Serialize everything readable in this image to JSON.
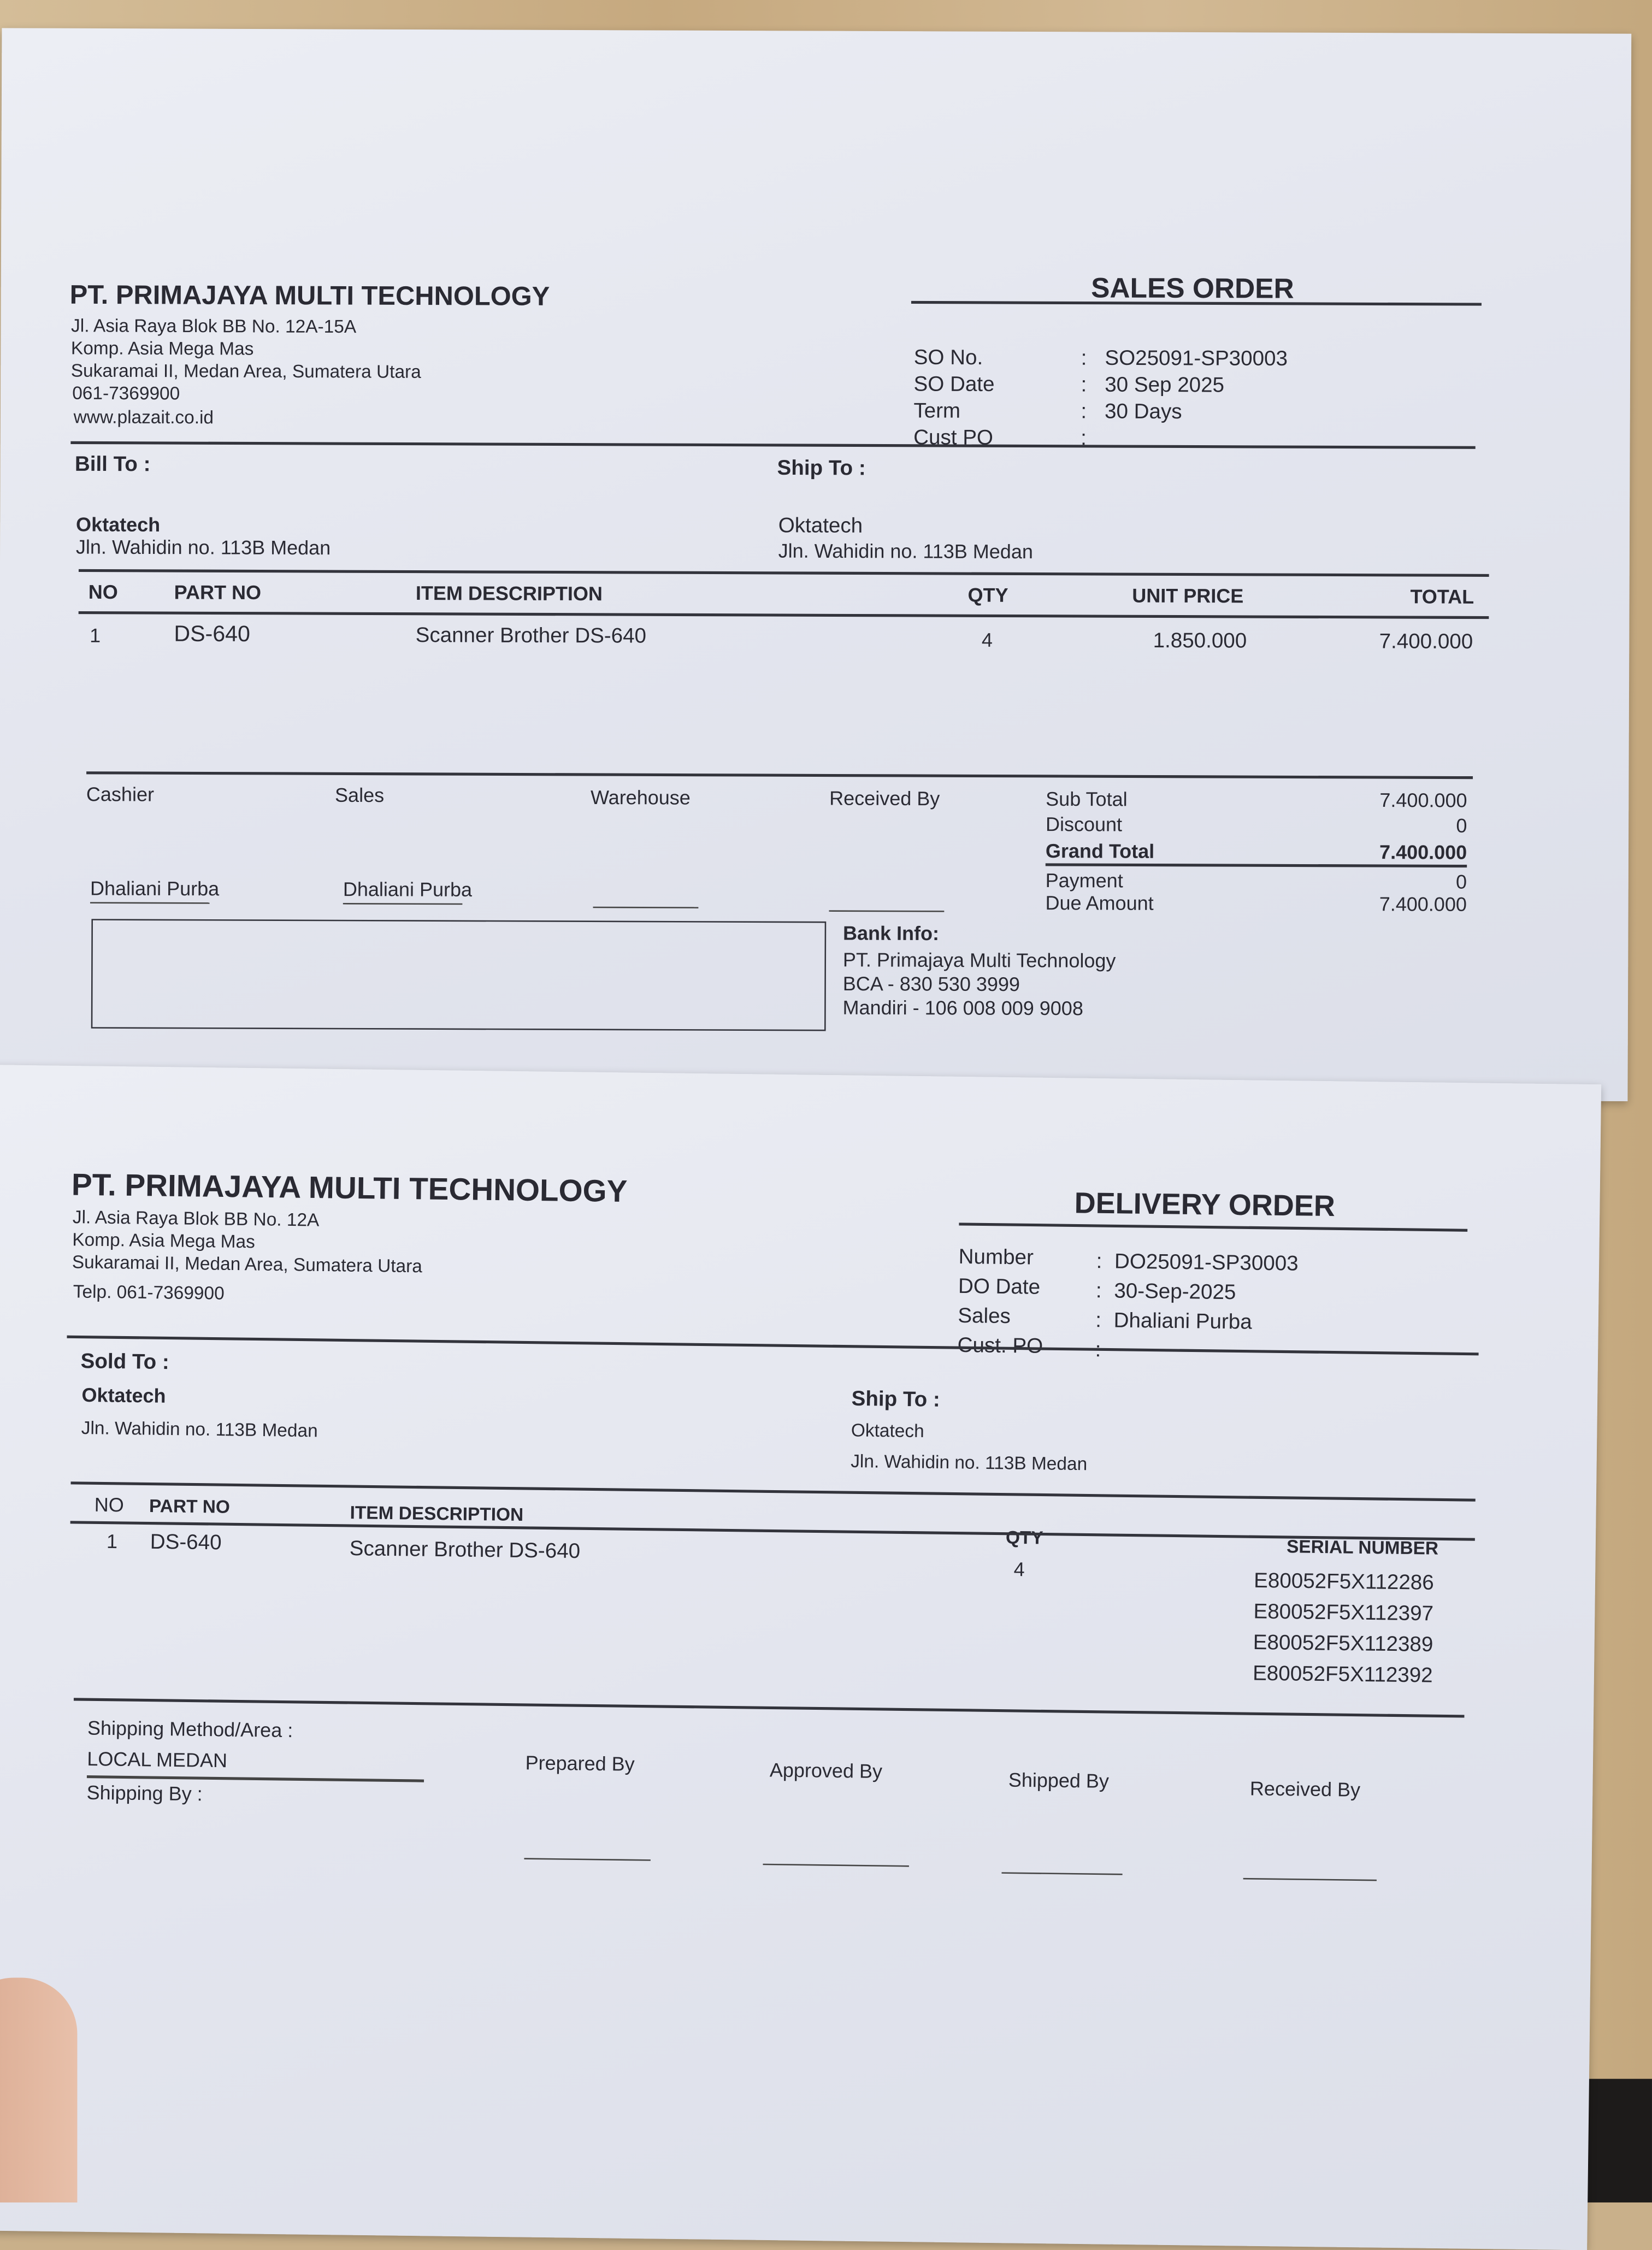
{
  "sales_order": {
    "company": {
      "name": "PT. PRIMAJAYA MULTI TECHNOLOGY",
      "address": [
        "Jl. Asia Raya Blok BB No. 12A-15A",
        "Komp. Asia Mega Mas",
        "Sukaramai II, Medan Area, Sumatera Utara",
        "061-7369900",
        "www.plazait.co.id"
      ]
    },
    "title": "SALES ORDER",
    "meta": [
      {
        "label": "SO No.",
        "value": "SO25091-SP30003"
      },
      {
        "label": "SO Date",
        "value": "30 Sep 2025"
      },
      {
        "label": "Term",
        "value": "30 Days"
      },
      {
        "label": "Cust PO",
        "value": ""
      }
    ],
    "bill_to": {
      "label": "Bill To :",
      "name": "Oktatech",
      "address": "Jln. Wahidin no. 113B Medan"
    },
    "ship_to": {
      "label": "Ship To :",
      "name": "Oktatech",
      "address": "Jln. Wahidin no. 113B Medan"
    },
    "columns": [
      "NO",
      "PART NO",
      "ITEM DESCRIPTION",
      "QTY",
      "UNIT PRICE",
      "TOTAL"
    ],
    "rows": [
      {
        "no": "1",
        "part": "DS-640",
        "desc": "Scanner Brother DS-640",
        "qty": "4",
        "price": "1.850.000",
        "total": "7.400.000"
      }
    ],
    "signatures": [
      {
        "label": "Cashier",
        "name": "Dhaliani Purba"
      },
      {
        "label": "Sales",
        "name": "Dhaliani Purba"
      },
      {
        "label": "Warehouse",
        "name": ""
      },
      {
        "label": "Received By",
        "name": ""
      }
    ],
    "totals": [
      {
        "label": "Sub Total",
        "value": "7.400.000"
      },
      {
        "label": "Discount",
        "value": "0"
      },
      {
        "label": "Grand Total",
        "value": "7.400.000"
      },
      {
        "label": "Payment",
        "value": "0"
      },
      {
        "label": "Due Amount",
        "value": "7.400.000"
      }
    ],
    "bank": {
      "label": "Bank Info:",
      "lines": [
        "PT. Primajaya Multi Technology",
        "BCA - 830 530 3999",
        "Mandiri - 106 008 009 9008"
      ]
    }
  },
  "delivery_order": {
    "company": {
      "name": "PT. PRIMAJAYA MULTI TECHNOLOGY",
      "address": [
        "Jl. Asia Raya Blok BB No. 12A",
        "Komp. Asia Mega Mas",
        "Sukaramai II, Medan Area, Sumatera Utara",
        "Telp. 061-7369900"
      ]
    },
    "title": "DELIVERY ORDER",
    "meta": [
      {
        "label": "Number",
        "value": "DO25091-SP30003"
      },
      {
        "label": "DO Date",
        "value": "30-Sep-2025"
      },
      {
        "label": "Sales",
        "value": "Dhaliani Purba"
      },
      {
        "label": "Cust. PO",
        "value": ""
      }
    ],
    "sold_to": {
      "label": "Sold To :",
      "name": "Oktatech",
      "address": "Jln. Wahidin no. 113B Medan"
    },
    "ship_to": {
      "label": "Ship To :",
      "name": "Oktatech",
      "address": "Jln. Wahidin no. 113B Medan"
    },
    "columns": [
      "NO",
      "PART NO",
      "ITEM DESCRIPTION",
      "QTY",
      "SERIAL NUMBER"
    ],
    "rows": [
      {
        "no": "1",
        "part": "DS-640",
        "desc": "Scanner Brother DS-640",
        "qty": "4",
        "serials": [
          "E80052F5X112286",
          "E80052F5X112397",
          "E80052F5X112389",
          "E80052F5X112392"
        ]
      }
    ],
    "shipping_method_label": "Shipping Method/Area :",
    "shipping_method": "LOCAL MEDAN",
    "shipping_by_label": "Shipping By :",
    "signatures": [
      "Prepared By",
      "Approved By",
      "Shipped By",
      "Received By"
    ]
  }
}
